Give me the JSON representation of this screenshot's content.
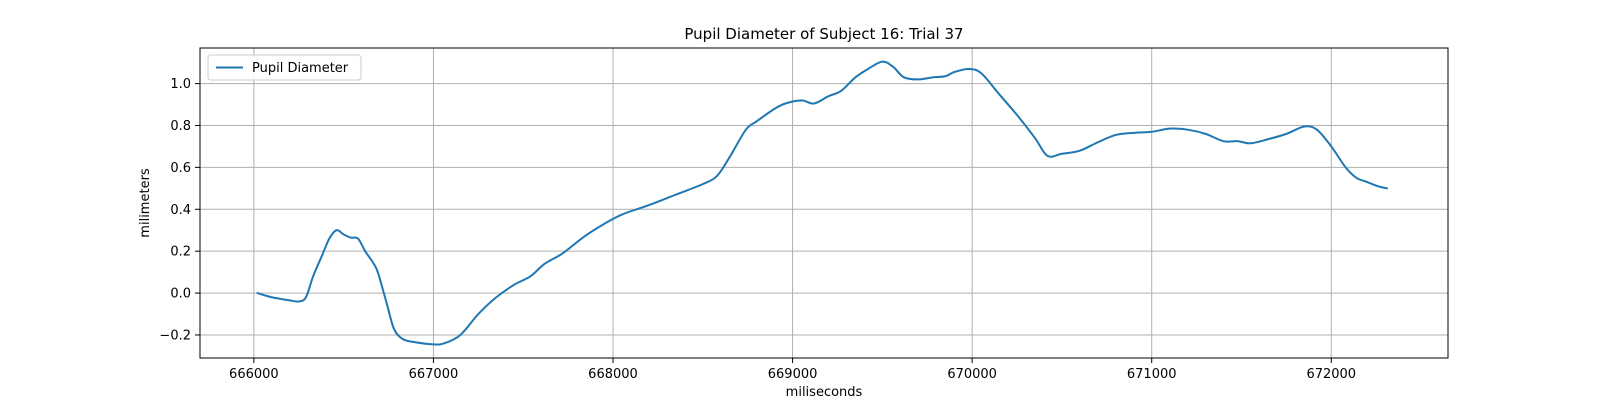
{
  "chart_data": {
    "type": "line",
    "title": "Pupil Diameter of Subject 16: Trial 37",
    "xlabel": "miliseconds",
    "ylabel": "milimeters",
    "xlim": [
      665700,
      672650
    ],
    "ylim": [
      -0.31,
      1.17
    ],
    "xticks": [
      666000,
      667000,
      668000,
      669000,
      670000,
      671000,
      672000
    ],
    "yticks": [
      -0.2,
      0.0,
      0.2,
      0.4,
      0.6,
      0.8,
      1.0
    ],
    "ytick_labels": [
      "−0.2",
      "0.0",
      "0.2",
      "0.4",
      "0.6",
      "0.8",
      "1.0"
    ],
    "grid": true,
    "legend": {
      "position": "top-left",
      "entries": [
        "Pupil Diameter"
      ]
    },
    "series": [
      {
        "name": "Pupil Diameter",
        "color": "#1f77b4",
        "points": [
          [
            666020,
            0.0
          ],
          [
            666100,
            -0.02
          ],
          [
            666200,
            -0.035
          ],
          [
            666250,
            -0.04
          ],
          [
            666290,
            -0.02
          ],
          [
            666330,
            0.08
          ],
          [
            666380,
            0.18
          ],
          [
            666420,
            0.26
          ],
          [
            666460,
            0.3
          ],
          [
            666500,
            0.28
          ],
          [
            666540,
            0.265
          ],
          [
            666580,
            0.26
          ],
          [
            666620,
            0.2
          ],
          [
            666660,
            0.15
          ],
          [
            666690,
            0.1
          ],
          [
            666740,
            -0.05
          ],
          [
            666780,
            -0.17
          ],
          [
            666830,
            -0.22
          ],
          [
            666900,
            -0.235
          ],
          [
            667000,
            -0.245
          ],
          [
            667060,
            -0.24
          ],
          [
            667150,
            -0.2
          ],
          [
            667250,
            -0.1
          ],
          [
            667350,
            -0.02
          ],
          [
            667450,
            0.04
          ],
          [
            667540,
            0.08
          ],
          [
            667620,
            0.14
          ],
          [
            667720,
            0.19
          ],
          [
            667840,
            0.27
          ],
          [
            667950,
            0.33
          ],
          [
            668050,
            0.375
          ],
          [
            668200,
            0.42
          ],
          [
            668350,
            0.47
          ],
          [
            668500,
            0.52
          ],
          [
            668580,
            0.56
          ],
          [
            668650,
            0.65
          ],
          [
            668740,
            0.78
          ],
          [
            668800,
            0.82
          ],
          [
            668900,
            0.88
          ],
          [
            668960,
            0.905
          ],
          [
            669050,
            0.92
          ],
          [
            669120,
            0.905
          ],
          [
            669200,
            0.94
          ],
          [
            669270,
            0.965
          ],
          [
            669350,
            1.03
          ],
          [
            669420,
            1.07
          ],
          [
            669500,
            1.105
          ],
          [
            669560,
            1.08
          ],
          [
            669620,
            1.03
          ],
          [
            669700,
            1.02
          ],
          [
            669780,
            1.03
          ],
          [
            669850,
            1.035
          ],
          [
            669900,
            1.055
          ],
          [
            669980,
            1.07
          ],
          [
            670050,
            1.05
          ],
          [
            670150,
            0.95
          ],
          [
            670250,
            0.85
          ],
          [
            670350,
            0.74
          ],
          [
            670420,
            0.655
          ],
          [
            670500,
            0.665
          ],
          [
            670600,
            0.68
          ],
          [
            670700,
            0.72
          ],
          [
            670800,
            0.755
          ],
          [
            670900,
            0.765
          ],
          [
            671000,
            0.77
          ],
          [
            671100,
            0.785
          ],
          [
            671200,
            0.78
          ],
          [
            671300,
            0.76
          ],
          [
            671400,
            0.725
          ],
          [
            671480,
            0.725
          ],
          [
            671550,
            0.715
          ],
          [
            671650,
            0.735
          ],
          [
            671750,
            0.76
          ],
          [
            671850,
            0.795
          ],
          [
            671920,
            0.78
          ],
          [
            672000,
            0.7
          ],
          [
            672080,
            0.6
          ],
          [
            672140,
            0.55
          ],
          [
            672200,
            0.53
          ],
          [
            672260,
            0.51
          ],
          [
            672310,
            0.5
          ]
        ]
      }
    ]
  }
}
